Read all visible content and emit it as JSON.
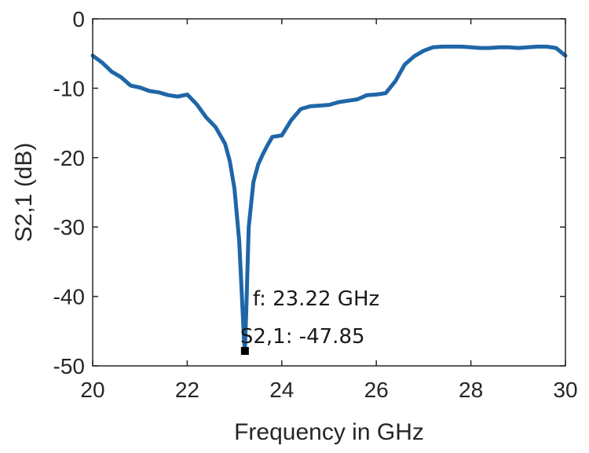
{
  "chart_data": {
    "type": "line",
    "title": "",
    "xlabel": "Frequency in GHz",
    "ylabel": "S2,1 (dB)",
    "xlim": [
      20,
      30
    ],
    "ylim": [
      -50,
      0
    ],
    "x_ticks": [
      20,
      22,
      24,
      26,
      28,
      30
    ],
    "y_ticks": [
      0,
      -10,
      -20,
      -30,
      -40,
      -50
    ],
    "x_tick_labels": [
      "20",
      "22",
      "24",
      "26",
      "28",
      "30"
    ],
    "y_tick_labels": [
      "0",
      "-10",
      "-20",
      "-30",
      "-40",
      "-50"
    ],
    "grid": false,
    "box": true,
    "line_color": "#1f66a8",
    "series": [
      {
        "x": [
          20.0,
          20.2,
          20.4,
          20.6,
          20.8,
          21.0,
          21.2,
          21.4,
          21.6,
          21.8,
          22.0,
          22.2,
          22.4,
          22.6,
          22.8,
          22.9,
          23.0,
          23.1,
          23.15,
          23.2,
          23.22,
          23.25,
          23.3,
          23.4,
          23.5,
          23.6,
          23.7,
          23.8,
          24.0,
          24.2,
          24.4,
          24.6,
          24.8,
          25.0,
          25.2,
          25.4,
          25.6,
          25.8,
          26.0,
          26.2,
          26.4,
          26.6,
          26.8,
          27.0,
          27.2,
          27.4,
          27.6,
          27.8,
          28.0,
          28.2,
          28.4,
          28.6,
          28.8,
          29.0,
          29.2,
          29.4,
          29.6,
          29.8,
          30.0
        ],
        "y": [
          -5.3,
          -6.3,
          -7.6,
          -8.4,
          -9.6,
          -9.9,
          -10.4,
          -10.6,
          -11.0,
          -11.2,
          -10.9,
          -12.3,
          -14.2,
          -15.6,
          -18.0,
          -20.5,
          -24.5,
          -32.0,
          -39.0,
          -46.0,
          -47.85,
          -42.0,
          -30.0,
          -23.5,
          -21.0,
          -19.5,
          -18.2,
          -17.0,
          -16.8,
          -14.6,
          -13.0,
          -12.6,
          -12.5,
          -12.4,
          -12.0,
          -11.8,
          -11.6,
          -11.0,
          -10.9,
          -10.7,
          -9.0,
          -6.6,
          -5.4,
          -4.6,
          -4.1,
          -4.0,
          -4.0,
          -4.0,
          -4.1,
          -4.2,
          -4.2,
          -4.1,
          -4.1,
          -4.2,
          -4.1,
          -4.0,
          -4.0,
          -4.2,
          -5.3
        ]
      }
    ],
    "datatip": {
      "x": 23.22,
      "y": -47.85,
      "line1": "f: 23.22 GHz",
      "line2": "S2,1: -47.85"
    }
  }
}
